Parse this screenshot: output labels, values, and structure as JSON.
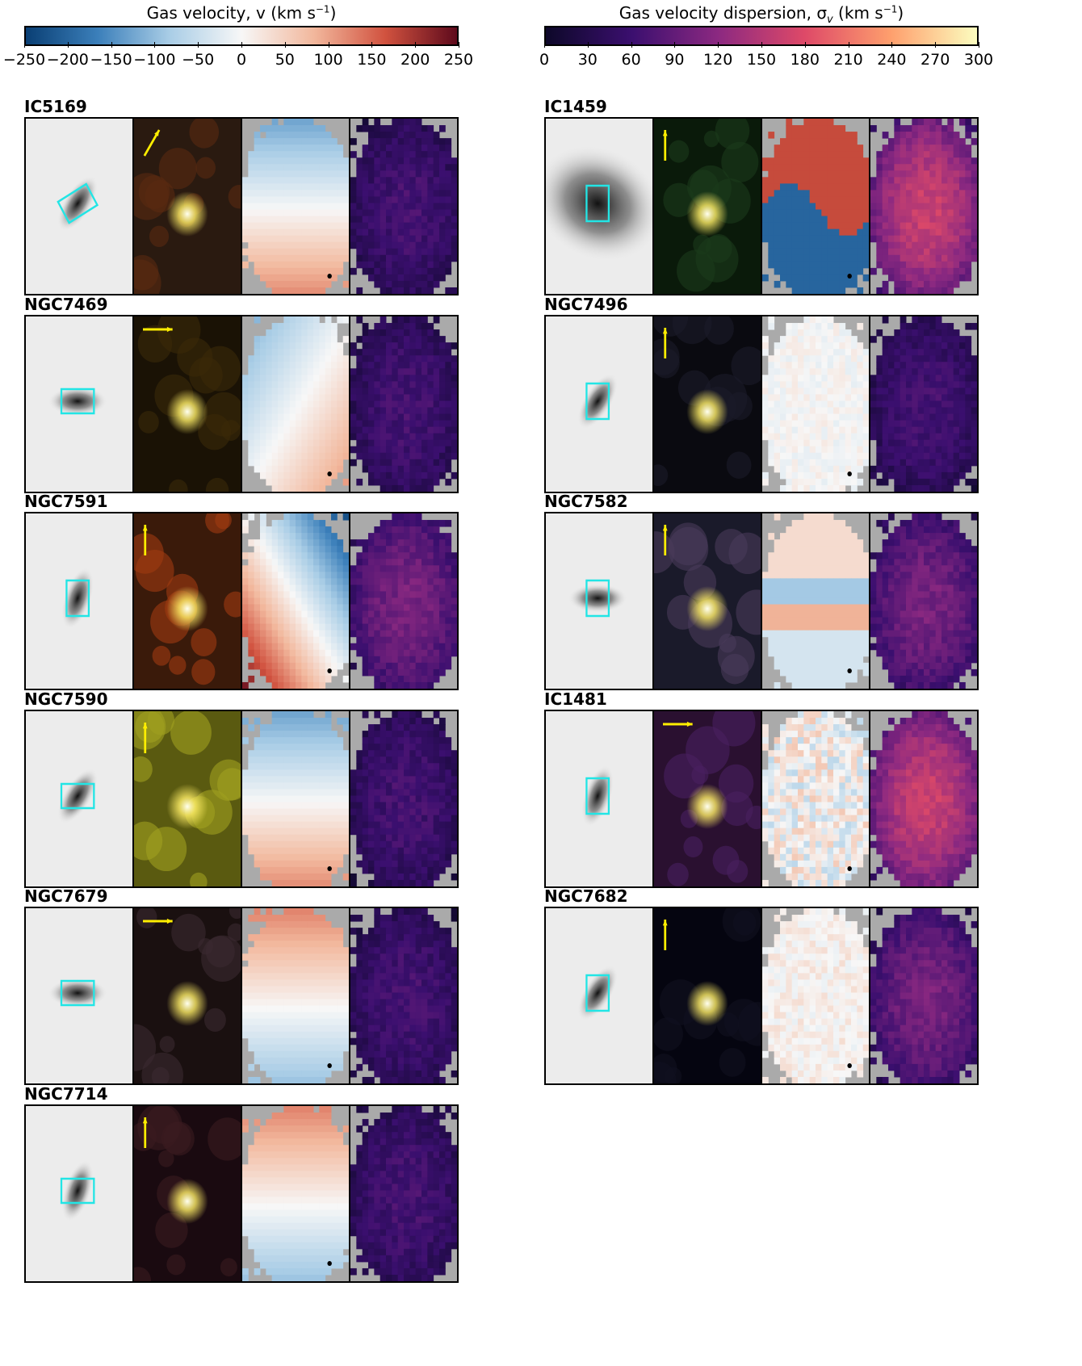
{
  "colorbars": {
    "velocity": {
      "title": "Gas velocity, v (km s",
      "title_sup": "−1",
      "title_close": ")",
      "ticks": [
        "−250",
        "−200",
        "−150",
        "−100",
        "−50",
        "0",
        "50",
        "100",
        "150",
        "200",
        "250"
      ],
      "colors": [
        "#0a3f74",
        "#3b7fba",
        "#a9cde6",
        "#f7f7f7",
        "#f2b89d",
        "#d1523f",
        "#5e0a1c"
      ]
    },
    "dispersion": {
      "title": "Gas velocity dispersion, σ",
      "title_sub": "v",
      "title_close": " (km s",
      "title_sup": "−1",
      "title_end": ")",
      "ticks": [
        "0",
        "30",
        "60",
        "90",
        "120",
        "150",
        "180",
        "210",
        "240",
        "270",
        "300"
      ],
      "colors": [
        "#0d0829",
        "#3b0f6f",
        "#8c2981",
        "#de4968",
        "#fe9f6d",
        "#fcfdbf"
      ]
    }
  },
  "galaxies": [
    {
      "name": "IC5169",
      "arrow": "diag",
      "vel": "ns-blue-top",
      "disp": "low"
    },
    {
      "name": "IC1459",
      "arrow": "up",
      "vel": "wave",
      "disp": "high"
    },
    {
      "name": "NGC7469",
      "arrow": "right",
      "vel": "tilt",
      "disp": "low"
    },
    {
      "name": "NGC7496",
      "arrow": "up",
      "vel": "flat",
      "disp": "low"
    },
    {
      "name": "NGC7591",
      "arrow": "up",
      "vel": "diag",
      "disp": "mid"
    },
    {
      "name": "NGC7582",
      "arrow": "up",
      "vel": "hourglass",
      "disp": "mid"
    },
    {
      "name": "NGC7590",
      "arrow": "up",
      "vel": "ns-blue-top",
      "disp": "low"
    },
    {
      "name": "IC1481",
      "arrow": "right",
      "vel": "patchy",
      "disp": "high"
    },
    {
      "name": "NGC7679",
      "arrow": "right",
      "vel": "ns-red-top",
      "disp": "low"
    },
    {
      "name": "NGC7682",
      "arrow": "up",
      "vel": "faint",
      "disp": "mid"
    },
    {
      "name": "NGC7714",
      "arrow": "up",
      "vel": "ns-red-top",
      "disp": "low"
    }
  ]
}
